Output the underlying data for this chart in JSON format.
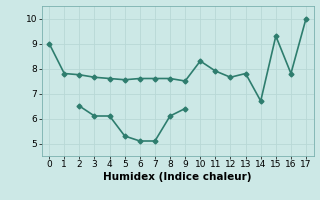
{
  "line1_x": [
    0,
    1,
    2,
    3,
    4,
    5,
    6,
    7,
    8,
    9,
    10,
    11,
    12,
    13,
    14,
    15,
    16,
    17
  ],
  "line1_y": [
    9.0,
    7.8,
    7.75,
    7.65,
    7.6,
    7.55,
    7.6,
    7.6,
    7.6,
    7.5,
    8.3,
    7.9,
    7.65,
    7.8,
    6.7,
    9.3,
    7.8,
    10.0
  ],
  "line2_x": [
    2,
    3,
    4,
    5,
    6,
    7,
    8,
    9
  ],
  "line2_y": [
    6.5,
    6.1,
    6.1,
    5.3,
    5.1,
    5.1,
    6.1,
    6.4
  ],
  "color": "#2e7d6e",
  "bg_color": "#cce8e6",
  "grid_color": "#b8d8d6",
  "xlabel": "Humidex (Indice chaleur)",
  "xlim": [
    -0.5,
    17.5
  ],
  "ylim": [
    4.5,
    10.5
  ],
  "yticks": [
    5,
    6,
    7,
    8,
    9,
    10
  ],
  "xticks": [
    0,
    1,
    2,
    3,
    4,
    5,
    6,
    7,
    8,
    9,
    10,
    11,
    12,
    13,
    14,
    15,
    16,
    17
  ],
  "marker": "D",
  "markersize": 2.5,
  "linewidth": 1.2,
  "xlabel_fontsize": 7.5,
  "tick_fontsize": 6.5
}
